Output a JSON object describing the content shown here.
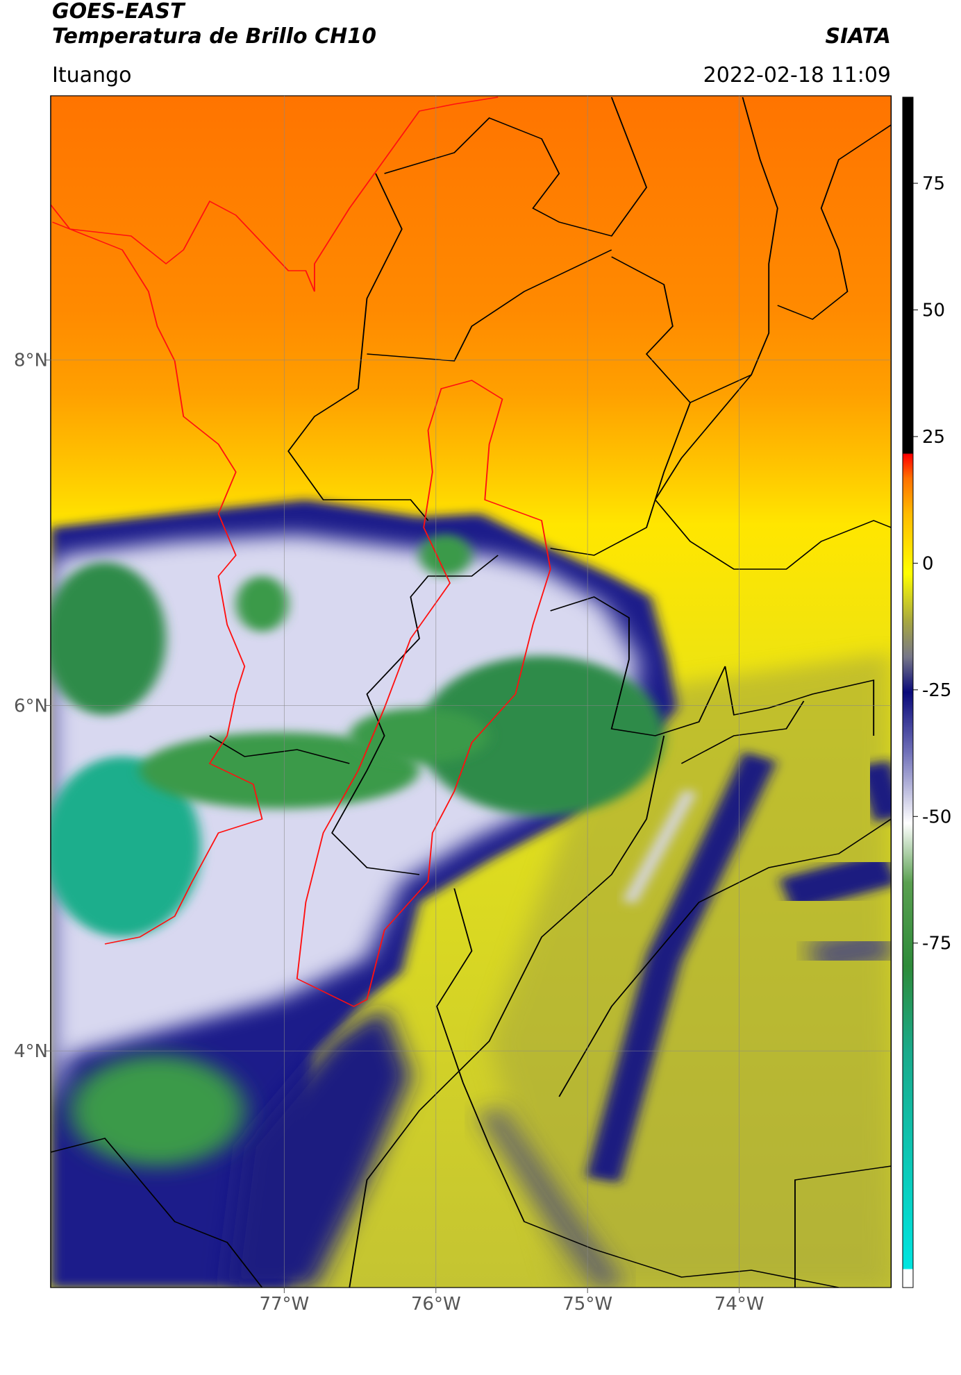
{
  "header": {
    "title": "GOES-EAST",
    "subtitle": "Temperatura de Brillo CH10",
    "brand": "SIATA",
    "location": "Ituango",
    "datetime": "2022-02-18 11:09"
  },
  "map": {
    "xlim": [
      -78.54,
      -73.0
    ],
    "ylim": [
      2.63,
      9.53
    ],
    "xticks": [
      {
        "value": -77,
        "label": "77°W"
      },
      {
        "value": -76,
        "label": "76°W"
      },
      {
        "value": -75,
        "label": "75°W"
      },
      {
        "value": -74,
        "label": "74°W"
      }
    ],
    "yticks": [
      {
        "value": 8,
        "label": "8°N"
      },
      {
        "value": 6,
        "label": "6°N"
      },
      {
        "value": 4,
        "label": "4°N"
      }
    ]
  },
  "colorbar": {
    "lim": [
      -143,
      92
    ],
    "ticks": [
      75,
      50,
      25,
      0,
      -25,
      -50,
      -75
    ]
  }
}
